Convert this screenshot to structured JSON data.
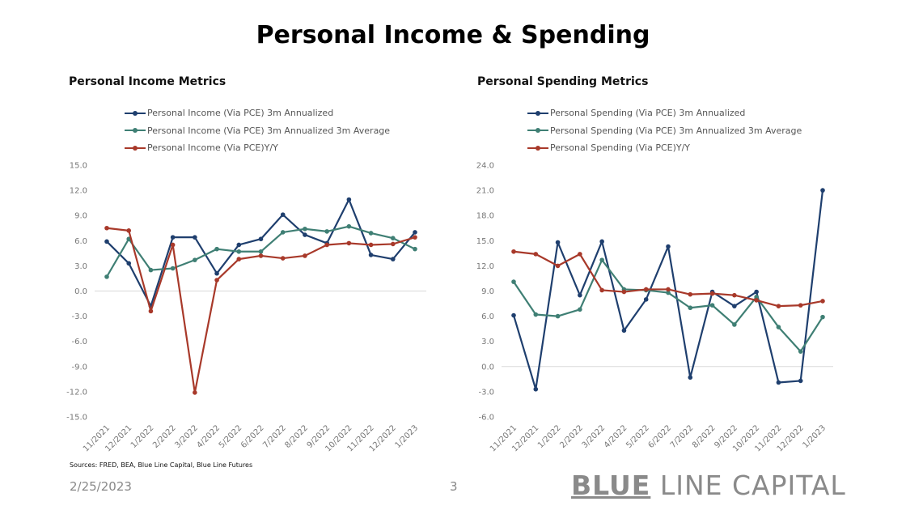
{
  "page": {
    "title": "Personal Income & Spending",
    "sources": "Sources: FRED, BEA, Blue Line Capital, Blue Line Futures",
    "date": "2/25/2023",
    "page_number": "3",
    "logo_text": "BLUE LINE CAPITAL"
  },
  "colors": {
    "blue": "#1f3f6e",
    "green": "#3f7f74",
    "red": "#a8392a"
  },
  "chart_data": [
    {
      "type": "line",
      "title": "Personal Income Metrics",
      "categories": [
        "11/2021",
        "12/2021",
        "1/2022",
        "2/2022",
        "3/2022",
        "4/2022",
        "5/2022",
        "6/2022",
        "7/2022",
        "8/2022",
        "9/2022",
        "10/2022",
        "11/2022",
        "12/2022",
        "1/2023"
      ],
      "ylim": [
        -15,
        15
      ],
      "yticks": [
        "15.0",
        "12.0",
        "9.0",
        "6.0",
        "3.0",
        "0.0",
        "-3.0",
        "-6.0",
        "-9.0",
        "-12.0",
        "-15.0"
      ],
      "legend": "top",
      "grid": false,
      "series": [
        {
          "name": "Personal Income (Via PCE) 3m Annualized",
          "color": "#1f3f6e",
          "values": [
            5.9,
            3.3,
            -1.8,
            6.4,
            6.4,
            2.1,
            5.5,
            6.2,
            9.1,
            6.7,
            5.7,
            10.9,
            4.3,
            3.8,
            7.0
          ]
        },
        {
          "name": "Personal Income (Via PCE) 3m Annualized 3m Average",
          "color": "#3f7f74",
          "values": [
            1.7,
            6.2,
            2.5,
            2.7,
            3.7,
            5.0,
            4.7,
            4.7,
            7.0,
            7.4,
            7.1,
            7.7,
            6.9,
            6.3,
            5.0
          ]
        },
        {
          "name": "Personal Income (Via PCE)Y/Y",
          "color": "#a8392a",
          "values": [
            7.5,
            7.2,
            -2.4,
            5.5,
            -12.1,
            1.3,
            3.8,
            4.2,
            3.9,
            4.2,
            5.5,
            5.7,
            5.5,
            5.6,
            6.4
          ]
        }
      ]
    },
    {
      "type": "line",
      "title": "Personal Spending Metrics",
      "categories": [
        "11/2021",
        "12/2021",
        "1/2022",
        "2/2022",
        "3/2022",
        "4/2022",
        "5/2022",
        "6/2022",
        "7/2022",
        "8/2022",
        "9/2022",
        "10/2022",
        "11/2022",
        "12/2022",
        "1/2023"
      ],
      "ylim": [
        -6,
        24
      ],
      "yticks": [
        "24.0",
        "21.0",
        "18.0",
        "15.0",
        "12.0",
        "9.0",
        "6.0",
        "3.0",
        "0.0",
        "-3.0",
        "-6.0"
      ],
      "legend": "top",
      "grid": false,
      "series": [
        {
          "name": "Personal Spending (Via PCE) 3m Annualized",
          "color": "#1f3f6e",
          "values": [
            6.1,
            -2.7,
            14.8,
            8.5,
            14.9,
            4.3,
            8.0,
            14.3,
            -1.3,
            8.9,
            7.2,
            8.9,
            -1.9,
            -1.7,
            21.0
          ]
        },
        {
          "name": "Personal Spending (Via PCE) 3m Annualized 3m Average",
          "color": "#3f7f74",
          "values": [
            10.1,
            6.2,
            6.0,
            6.8,
            12.7,
            9.2,
            9.1,
            8.8,
            7.0,
            7.3,
            5.0,
            8.3,
            4.7,
            1.8,
            5.9
          ]
        },
        {
          "name": "Personal Spending (Via PCE)Y/Y",
          "color": "#a8392a",
          "values": [
            13.7,
            13.4,
            12.0,
            13.4,
            9.1,
            8.9,
            9.2,
            9.2,
            8.6,
            8.7,
            8.5,
            7.9,
            7.2,
            7.3,
            7.8
          ]
        }
      ]
    }
  ]
}
